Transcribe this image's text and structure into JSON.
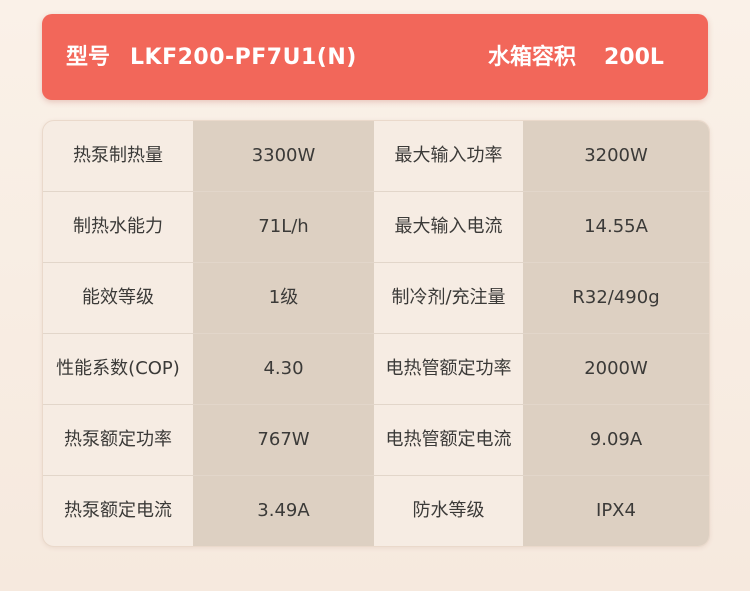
{
  "header": {
    "model_label": "型号",
    "model_value": "LKF200-PF7U1(N)",
    "tank_label": "水箱容积",
    "tank_value": "200L"
  },
  "specs": [
    {
      "left_label": "热泵制热量",
      "left_value": "3300W",
      "right_label": "最大输入功率",
      "right_value": "3200W"
    },
    {
      "left_label": "制热水能力",
      "left_value": "71L/h",
      "right_label": "最大输入电流",
      "right_value": "14.55A"
    },
    {
      "left_label": "能效等级",
      "left_value": "1级",
      "right_label": "制冷剂/充注量",
      "right_value": "R32/490g"
    },
    {
      "left_label": "性能系数(COP)",
      "left_value": "4.30",
      "right_label": "电热管额定功率",
      "right_value": "2000W"
    },
    {
      "left_label": "热泵额定功率",
      "left_value": "767W",
      "right_label": "电热管额定电流",
      "right_value": "9.09A"
    },
    {
      "left_label": "热泵额定电流",
      "left_value": "3.49A",
      "right_label": "防水等级",
      "right_value": "IPX4"
    }
  ],
  "colors": {
    "banner": "#f2675a",
    "value_column": "#ddd0c2",
    "label_column": "#f6ece3",
    "text": "#3b3a38"
  }
}
